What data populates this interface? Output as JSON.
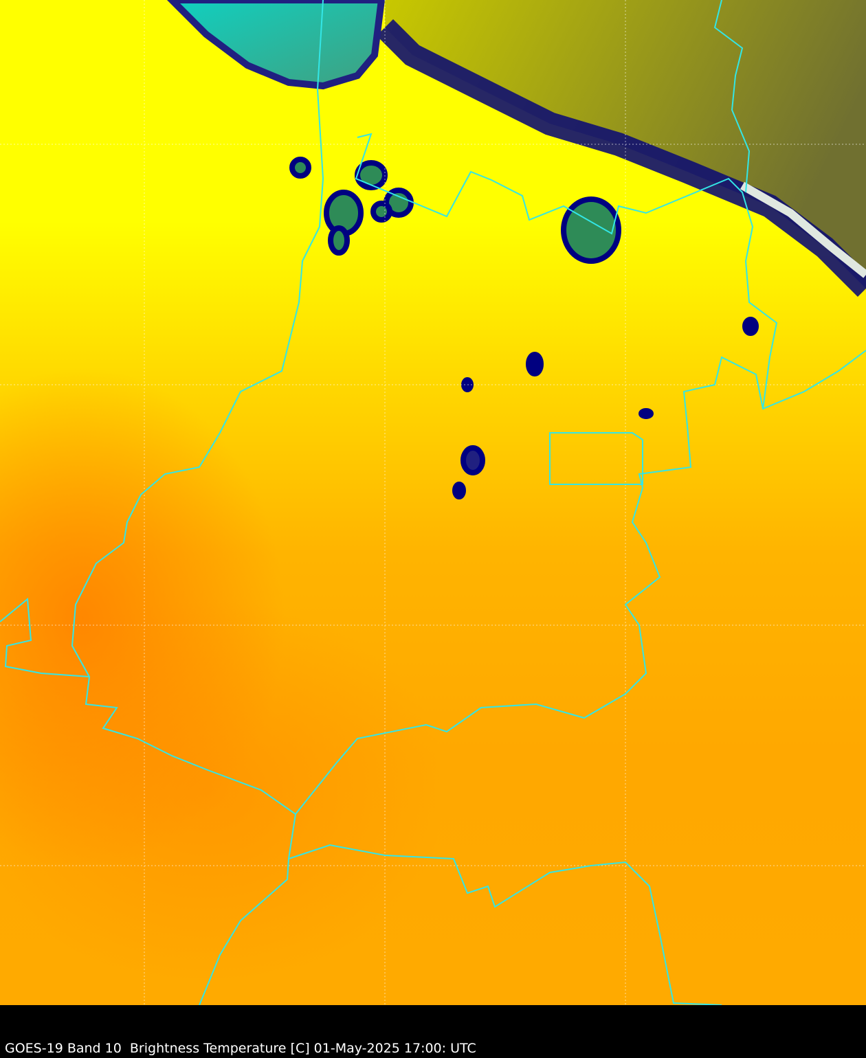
{
  "caption": "GOES-19 Band 10  Brightness Temperature [C] 01-May-2025 17:00: UTC",
  "colors": {
    "border": "#33e6e6",
    "warm": "#ffa500",
    "cool": "#ffff00",
    "cold_cloud": "#000080",
    "coldest": "#2e8b57",
    "lake": "#20c0b0"
  }
}
